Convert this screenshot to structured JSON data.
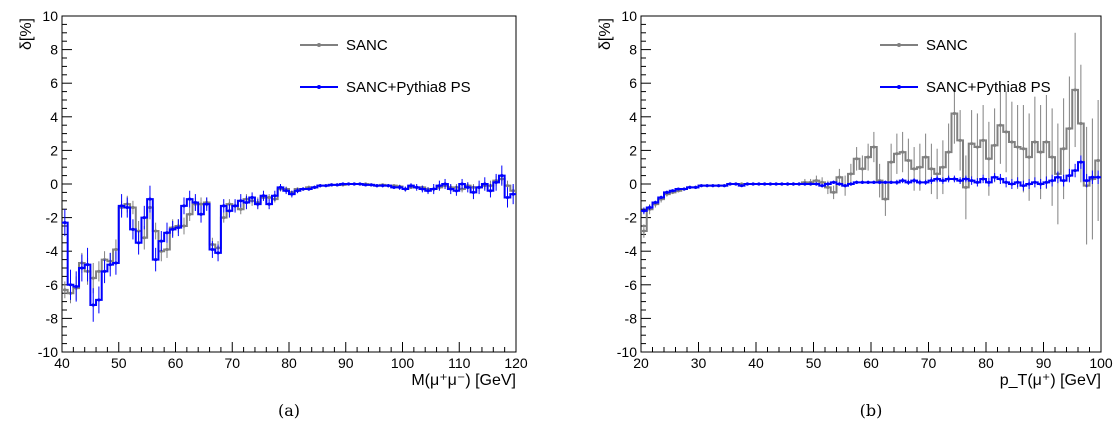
{
  "chart_data": [
    {
      "type": "line",
      "caption": "(a)",
      "xlabel": "M(μ⁺μ⁻) [GeV]",
      "ylabel": "δ[%]",
      "xlim": [
        40,
        120
      ],
      "ylim": [
        -10,
        10
      ],
      "x_ticks": [
        "40",
        "50",
        "60",
        "70",
        "80",
        "90",
        "100",
        "110",
        "120"
      ],
      "y_ticks": [
        "-10",
        "-8",
        "-6",
        "-4",
        "-2",
        "0",
        "2",
        "4",
        "6",
        "8",
        "10"
      ],
      "legend_position": "top-right",
      "series": [
        {
          "name": "SANC",
          "color": "#808080",
          "x": [
            40.5,
            41.5,
            42.5,
            43.5,
            44.5,
            45.5,
            46.5,
            47.5,
            48.5,
            49.5,
            50.5,
            51.5,
            52.5,
            53.5,
            54.5,
            55.5,
            56.5,
            57.5,
            58.5,
            59.5,
            60.5,
            61.5,
            62.5,
            63.5,
            64.5,
            65.5,
            66.5,
            67.5,
            68.5,
            69.5,
            70.5,
            71.5,
            72.5,
            73.5,
            74.5,
            75.5,
            76.5,
            77.5,
            78.5,
            79.5,
            80.5,
            81.5,
            82.5,
            83.5,
            84.5,
            85.5,
            86.5,
            87.5,
            88.5,
            89.5,
            90.5,
            91.5,
            92.5,
            93.5,
            94.5,
            95.5,
            96.5,
            97.5,
            98.5,
            99.5,
            100.5,
            101.5,
            102.5,
            103.5,
            104.5,
            105.5,
            106.5,
            107.5,
            108.5,
            109.5,
            110.5,
            111.5,
            112.5,
            113.5,
            114.5,
            115.5,
            116.5,
            117.5,
            118.5,
            119.5
          ],
          "y": [
            -6.3,
            -6.5,
            -6.2,
            -4.7,
            -5.2,
            -5.6,
            -5.2,
            -4.5,
            -4.6,
            -3.9,
            -1.4,
            -1.2,
            -1.4,
            -2.8,
            -3.2,
            -1.4,
            -2.8,
            -4.0,
            -3.9,
            -2.6,
            -2.5,
            -2.5,
            -1.8,
            -1.2,
            -1.2,
            -1.1,
            -3.6,
            -3.8,
            -2.0,
            -1.2,
            -1.3,
            -1.5,
            -0.9,
            -1.0,
            -1.1,
            -0.8,
            -0.8,
            -0.9,
            -0.3,
            -0.3,
            -0.5,
            -0.3,
            -0.3,
            -0.2,
            -0.2,
            -0.1,
            -0.1,
            -0.05,
            -0.05,
            -0.05,
            0.0,
            0.0,
            0.0,
            0.0,
            -0.05,
            -0.1,
            -0.05,
            -0.1,
            -0.1,
            -0.15,
            -0.3,
            -0.2,
            -0.2,
            -0.2,
            -0.3,
            -0.3,
            -0.2,
            -0.1,
            -0.2,
            -0.2,
            -0.3,
            -0.1,
            -0.2,
            -0.2,
            -0.1,
            -0.1,
            0.2,
            0.3,
            -0.1,
            -0.4
          ],
          "err": [
            0.5,
            0.6,
            0.7,
            0.6,
            0.8,
            0.9,
            0.6,
            0.5,
            0.5,
            0.6,
            0.4,
            0.5,
            0.4,
            0.6,
            0.7,
            0.7,
            0.5,
            0.6,
            0.5,
            0.5,
            0.4,
            0.5,
            0.4,
            0.4,
            0.4,
            0.3,
            0.4,
            0.4,
            0.3,
            0.3,
            0.3,
            0.3,
            0.3,
            0.3,
            0.3,
            0.2,
            0.2,
            0.2,
            0.15,
            0.15,
            0.1,
            0.1,
            0.1,
            0.1,
            0.05,
            0.05,
            0.05,
            0.05,
            0.05,
            0.05,
            0.05,
            0.05,
            0.05,
            0.05,
            0.05,
            0.05,
            0.05,
            0.05,
            0.1,
            0.1,
            0.1,
            0.1,
            0.1,
            0.1,
            0.1,
            0.15,
            0.15,
            0.15,
            0.15,
            0.2,
            0.2,
            0.2,
            0.2,
            0.2,
            0.2,
            0.3,
            0.3,
            0.3,
            0.3,
            0.3
          ]
        },
        {
          "name": "SANC+Pythia8 PS",
          "color": "#0000ff",
          "x": [
            40.5,
            41.5,
            42.5,
            43.5,
            44.5,
            45.5,
            46.5,
            47.5,
            48.5,
            49.5,
            50.5,
            51.5,
            52.5,
            53.5,
            54.5,
            55.5,
            56.5,
            57.5,
            58.5,
            59.5,
            60.5,
            61.5,
            62.5,
            63.5,
            64.5,
            65.5,
            66.5,
            67.5,
            68.5,
            69.5,
            70.5,
            71.5,
            72.5,
            73.5,
            74.5,
            75.5,
            76.5,
            77.5,
            78.5,
            79.5,
            80.5,
            81.5,
            82.5,
            83.5,
            84.5,
            85.5,
            86.5,
            87.5,
            88.5,
            89.5,
            90.5,
            91.5,
            92.5,
            93.5,
            94.5,
            95.5,
            96.5,
            97.5,
            98.5,
            99.5,
            100.5,
            101.5,
            102.5,
            103.5,
            104.5,
            105.5,
            106.5,
            107.5,
            108.5,
            109.5,
            110.5,
            111.5,
            112.5,
            113.5,
            114.5,
            115.5,
            116.5,
            117.5,
            118.5,
            119.5
          ],
          "y": [
            -2.3,
            -6.0,
            -6.1,
            -5.0,
            -4.8,
            -7.2,
            -6.9,
            -5.2,
            -4.8,
            -4.7,
            -1.3,
            -1.4,
            -2.7,
            -3.5,
            -2.0,
            -0.9,
            -4.5,
            -3.4,
            -2.9,
            -2.7,
            -2.6,
            -1.3,
            -0.9,
            -1.1,
            -1.8,
            -1.2,
            -3.9,
            -4.1,
            -1.3,
            -1.6,
            -1.3,
            -1.0,
            -1.1,
            -0.8,
            -1.2,
            -0.7,
            -1.2,
            -0.7,
            -0.2,
            -0.4,
            -0.6,
            -0.4,
            -0.3,
            -0.3,
            -0.2,
            -0.1,
            -0.1,
            -0.05,
            -0.05,
            0.0,
            0.0,
            0.0,
            0.0,
            -0.05,
            -0.05,
            -0.1,
            -0.1,
            -0.1,
            -0.2,
            -0.2,
            -0.3,
            -0.1,
            -0.2,
            -0.3,
            -0.4,
            -0.3,
            -0.1,
            0.0,
            -0.3,
            -0.4,
            0.0,
            -0.2,
            -0.5,
            -0.2,
            0.0,
            -0.4,
            0.1,
            0.5,
            -0.8,
            -0.6
          ],
          "err": [
            0.8,
            0.9,
            0.9,
            0.8,
            1.0,
            1.0,
            0.8,
            0.7,
            0.7,
            0.7,
            0.7,
            0.6,
            0.6,
            0.7,
            0.7,
            0.8,
            0.7,
            0.6,
            0.6,
            0.5,
            0.5,
            0.5,
            0.5,
            0.5,
            0.5,
            0.4,
            0.5,
            0.5,
            0.4,
            0.4,
            0.4,
            0.4,
            0.4,
            0.3,
            0.3,
            0.3,
            0.3,
            0.3,
            0.2,
            0.2,
            0.2,
            0.15,
            0.1,
            0.1,
            0.1,
            0.1,
            0.05,
            0.05,
            0.05,
            0.05,
            0.05,
            0.05,
            0.05,
            0.05,
            0.05,
            0.1,
            0.1,
            0.1,
            0.1,
            0.15,
            0.15,
            0.15,
            0.2,
            0.2,
            0.2,
            0.3,
            0.3,
            0.3,
            0.3,
            0.3,
            0.3,
            0.3,
            0.4,
            0.4,
            0.4,
            0.4,
            0.5,
            0.6,
            0.6,
            0.6
          ]
        }
      ]
    },
    {
      "type": "line",
      "caption": "(b)",
      "xlabel": "p_T(μ⁺) [GeV]",
      "ylabel": "δ[%]",
      "xlim": [
        20,
        100
      ],
      "ylim": [
        -10,
        10
      ],
      "x_ticks": [
        "20",
        "30",
        "40",
        "50",
        "60",
        "70",
        "80",
        "90",
        "100"
      ],
      "y_ticks": [
        "-10",
        "-8",
        "-6",
        "-4",
        "-2",
        "0",
        "2",
        "4",
        "6",
        "8",
        "10"
      ],
      "legend_position": "top-right",
      "series": [
        {
          "name": "SANC",
          "color": "#808080",
          "x": [
            20.5,
            21.5,
            22.5,
            23.5,
            24.5,
            25.5,
            26.5,
            27.5,
            28.5,
            29.5,
            30.5,
            31.5,
            32.5,
            33.5,
            34.5,
            35.5,
            36.5,
            37.5,
            38.5,
            39.5,
            40.5,
            41.5,
            42.5,
            43.5,
            44.5,
            45.5,
            46.5,
            47.5,
            48.5,
            49.5,
            50.5,
            51.5,
            52.5,
            53.5,
            54.5,
            55.5,
            56.5,
            57.5,
            58.5,
            59.5,
            60.5,
            61.5,
            62.5,
            63.5,
            64.5,
            65.5,
            66.5,
            67.5,
            68.5,
            69.5,
            70.5,
            71.5,
            72.5,
            73.5,
            74.5,
            75.5,
            76.5,
            77.5,
            78.5,
            79.5,
            80.5,
            81.5,
            82.5,
            83.5,
            84.5,
            85.5,
            86.5,
            87.5,
            88.5,
            89.5,
            90.5,
            91.5,
            92.5,
            93.5,
            94.5,
            95.5,
            96.5,
            97.5,
            98.5,
            99.5
          ],
          "y": [
            -2.8,
            -1.5,
            -1.2,
            -0.9,
            -0.6,
            -0.5,
            -0.4,
            -0.3,
            -0.2,
            -0.2,
            -0.1,
            -0.1,
            -0.1,
            -0.1,
            -0.1,
            0.0,
            0.0,
            0.0,
            0.0,
            0.0,
            0.0,
            0.0,
            0.0,
            0.0,
            0.0,
            0.0,
            0.0,
            0.0,
            0.1,
            0.1,
            0.2,
            0.1,
            -0.2,
            -0.5,
            0.4,
            -0.1,
            0.6,
            1.5,
            0.9,
            1.6,
            2.2,
            0.2,
            -0.9,
            1.3,
            1.8,
            1.9,
            1.4,
            0.9,
            1.0,
            1.6,
            0.9,
            0.6,
            1.0,
            1.9,
            4.2,
            2.6,
            -0.2,
            2.4,
            2.2,
            2.6,
            1.5,
            2.3,
            3.5,
            3.1,
            2.5,
            2.2,
            2.1,
            1.6,
            2.5,
            1.9,
            2.5,
            1.6,
            0.6,
            2.1,
            3.3,
            5.6,
            3.6,
            -0.1,
            0.3,
            1.4
          ],
          "err": [
            0.4,
            0.3,
            0.2,
            0.2,
            0.15,
            0.1,
            0.1,
            0.1,
            0.1,
            0.1,
            0.05,
            0.05,
            0.05,
            0.05,
            0.05,
            0.05,
            0.05,
            0.05,
            0.05,
            0.05,
            0.05,
            0.05,
            0.05,
            0.05,
            0.05,
            0.1,
            0.1,
            0.1,
            0.2,
            0.2,
            0.3,
            0.3,
            0.4,
            0.4,
            0.5,
            0.6,
            0.6,
            0.7,
            0.8,
            0.8,
            0.9,
            1.0,
            1.0,
            1.1,
            1.2,
            1.2,
            1.3,
            1.3,
            1.4,
            1.4,
            1.5,
            1.5,
            1.6,
            1.7,
            1.8,
            1.8,
            1.9,
            2.0,
            2.0,
            2.1,
            2.2,
            2.2,
            2.3,
            2.4,
            2.4,
            2.5,
            2.6,
            2.6,
            2.7,
            2.8,
            2.8,
            2.9,
            3.0,
            3.0,
            3.1,
            3.4,
            3.5,
            3.5,
            3.6,
            3.6
          ]
        },
        {
          "name": "SANC+Pythia8 PS",
          "color": "#0000ff",
          "x": [
            20.5,
            21.5,
            22.5,
            23.5,
            24.5,
            25.5,
            26.5,
            27.5,
            28.5,
            29.5,
            30.5,
            31.5,
            32.5,
            33.5,
            34.5,
            35.5,
            36.5,
            37.5,
            38.5,
            39.5,
            40.5,
            41.5,
            42.5,
            43.5,
            44.5,
            45.5,
            46.5,
            47.5,
            48.5,
            49.5,
            50.5,
            51.5,
            52.5,
            53.5,
            54.5,
            55.5,
            56.5,
            57.5,
            58.5,
            59.5,
            60.5,
            61.5,
            62.5,
            63.5,
            64.5,
            65.5,
            66.5,
            67.5,
            68.5,
            69.5,
            70.5,
            71.5,
            72.5,
            73.5,
            74.5,
            75.5,
            76.5,
            77.5,
            78.5,
            79.5,
            80.5,
            81.5,
            82.5,
            83.5,
            84.5,
            85.5,
            86.5,
            87.5,
            88.5,
            89.5,
            90.5,
            91.5,
            92.5,
            93.5,
            94.5,
            95.5,
            96.5,
            97.5,
            98.5,
            99.5
          ],
          "y": [
            -1.6,
            -1.4,
            -1.1,
            -0.8,
            -0.5,
            -0.4,
            -0.3,
            -0.3,
            -0.2,
            -0.2,
            -0.1,
            -0.1,
            -0.1,
            -0.1,
            -0.1,
            0.0,
            0.0,
            -0.1,
            0.0,
            0.0,
            0.0,
            0.0,
            0.0,
            0.0,
            0.0,
            0.0,
            0.0,
            0.0,
            0.0,
            0.0,
            0.0,
            -0.1,
            0.0,
            0.1,
            0.0,
            -0.1,
            0.0,
            0.1,
            0.1,
            0.1,
            0.1,
            0.1,
            0.1,
            0.1,
            0.1,
            0.2,
            0.1,
            0.2,
            0.1,
            0.1,
            0.2,
            0.3,
            0.2,
            0.3,
            0.3,
            0.2,
            0.3,
            0.2,
            0.1,
            0.3,
            0.1,
            0.4,
            0.3,
            0.1,
            0.0,
            0.1,
            -0.1,
            0.0,
            0.1,
            0.0,
            0.1,
            0.2,
            0.4,
            0.2,
            0.5,
            0.8,
            1.3,
            0.2,
            0.4,
            0.4
          ],
          "err": [
            0.2,
            0.15,
            0.1,
            0.1,
            0.1,
            0.05,
            0.05,
            0.05,
            0.05,
            0.05,
            0.05,
            0.05,
            0.05,
            0.05,
            0.05,
            0.05,
            0.05,
            0.05,
            0.05,
            0.05,
            0.05,
            0.05,
            0.05,
            0.05,
            0.05,
            0.05,
            0.05,
            0.05,
            0.05,
            0.05,
            0.05,
            0.1,
            0.1,
            0.1,
            0.1,
            0.1,
            0.1,
            0.1,
            0.1,
            0.1,
            0.1,
            0.1,
            0.1,
            0.1,
            0.15,
            0.15,
            0.15,
            0.15,
            0.15,
            0.15,
            0.2,
            0.2,
            0.2,
            0.2,
            0.2,
            0.2,
            0.2,
            0.25,
            0.25,
            0.25,
            0.25,
            0.25,
            0.3,
            0.3,
            0.3,
            0.3,
            0.3,
            0.3,
            0.3,
            0.3,
            0.35,
            0.35,
            0.35,
            0.35,
            0.4,
            0.4,
            0.4,
            0.4,
            0.4,
            0.4
          ]
        }
      ]
    }
  ]
}
